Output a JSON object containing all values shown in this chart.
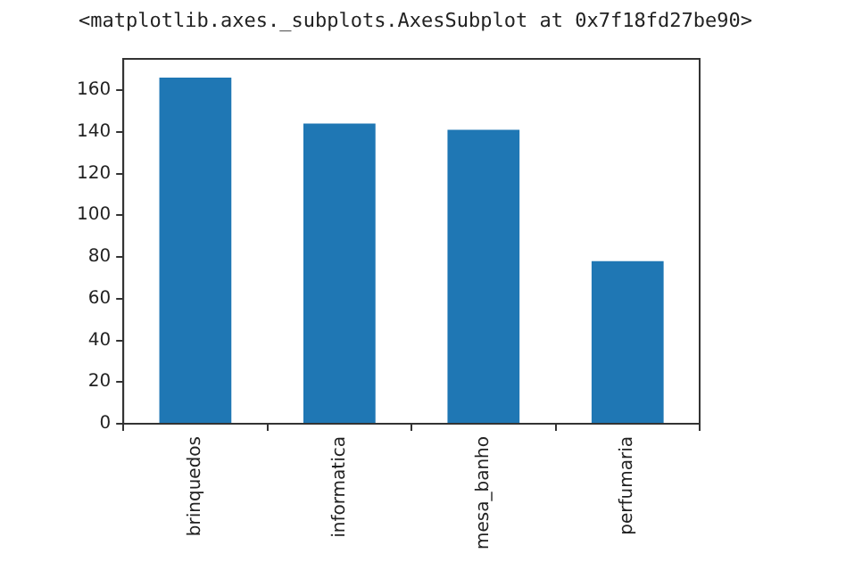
{
  "chart_data": {
    "type": "bar",
    "annotations": [
      "<matplotlib.axes._subplots.AxesSubplot at 0x7f18fd27be90>"
    ],
    "categories": [
      "brinquedos",
      "informatica",
      "mesa_banho",
      "perfumaria"
    ],
    "values": [
      166,
      144,
      141,
      78
    ],
    "color": "#1f77b4",
    "ylim": [
      0,
      175
    ],
    "yticks": [
      0,
      20,
      40,
      60,
      80,
      100,
      120,
      140,
      160
    ],
    "grid": false,
    "legend": false
  }
}
